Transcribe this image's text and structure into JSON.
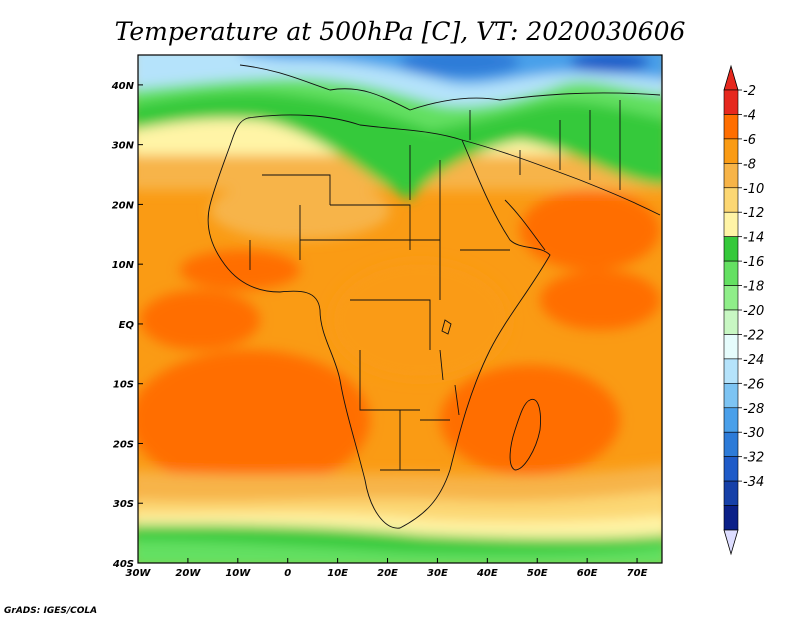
{
  "title": "Temperature at 500hPa [C], VT: 2020030606",
  "credit": "GrADS: IGES/COLA",
  "lat_labels": [
    "40N",
    "30N",
    "20N",
    "10N",
    "EQ",
    "10S",
    "20S",
    "30S",
    "40S"
  ],
  "lon_labels": [
    "30W",
    "20W",
    "10W",
    "0",
    "10E",
    "20E",
    "30E",
    "40E",
    "50E",
    "60E",
    "70E"
  ],
  "extent": {
    "lon": [
      -30,
      75
    ],
    "lat": [
      -40,
      45
    ]
  },
  "colorbar": {
    "levels": [
      "-2",
      "-4",
      "-6",
      "-8",
      "-10",
      "-12",
      "-14",
      "-16",
      "-18",
      "-20",
      "-22",
      "-24",
      "-26",
      "-28",
      "-30",
      "-32",
      "-34"
    ],
    "colors": [
      "#e6281e",
      "#ff6e00",
      "#fa9b14",
      "#f7b448",
      "#fcd773",
      "#fff4a6",
      "#35c93a",
      "#64e062",
      "#8fee89",
      "#c8f7c3",
      "#e6fcfc",
      "#b5e3fb",
      "#7dc4f3",
      "#4aa0ea",
      "#2d7bd8",
      "#1f5bc8",
      "#1640a8",
      "#0b2088"
    ],
    "end_colors": {
      "top": "#e6281e",
      "bottom": "#ddddff"
    }
  }
}
